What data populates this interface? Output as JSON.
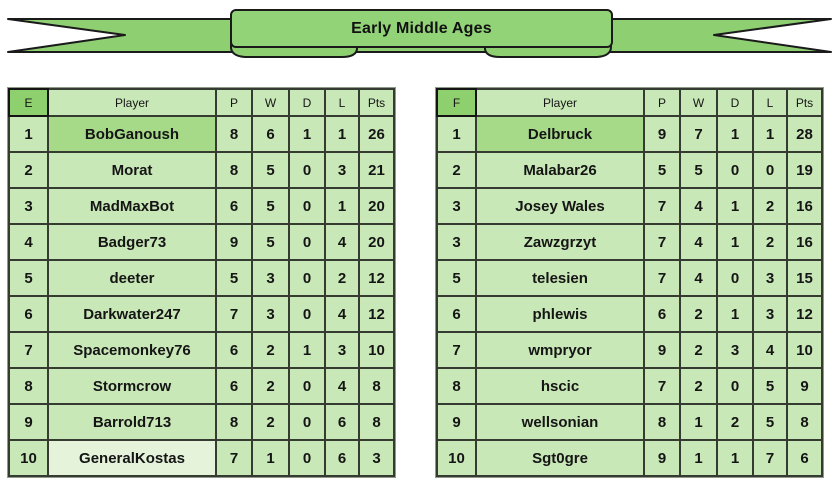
{
  "banner": {
    "title": "Early Middle Ages"
  },
  "colors": {
    "ribbon_green": "#8ecf72",
    "box_green": "#93d377",
    "header_green": "#8ed06e",
    "row_green": "#c9e8b7",
    "highlight_green": "#a6da89",
    "pale_green": "#e5f3da",
    "border_dark": "#353b31"
  },
  "tables": [
    {
      "group": "E",
      "headers": [
        "E",
        "Player",
        "P",
        "W",
        "D",
        "L",
        "Pts"
      ],
      "rows": [
        {
          "rank": "1",
          "player": "BobGanoush",
          "stats": [
            "8",
            "6",
            "1",
            "1",
            "26"
          ],
          "player_cell": "top"
        },
        {
          "rank": "2",
          "player": "Morat",
          "stats": [
            "8",
            "5",
            "0",
            "3",
            "21"
          ],
          "player_cell": "normal"
        },
        {
          "rank": "3",
          "player": "MadMaxBot",
          "stats": [
            "6",
            "5",
            "0",
            "1",
            "20"
          ],
          "player_cell": "normal"
        },
        {
          "rank": "4",
          "player": "Badger73",
          "stats": [
            "9",
            "5",
            "0",
            "4",
            "20"
          ],
          "player_cell": "normal"
        },
        {
          "rank": "5",
          "player": "deeter",
          "stats": [
            "5",
            "3",
            "0",
            "2",
            "12"
          ],
          "player_cell": "normal"
        },
        {
          "rank": "6",
          "player": "Darkwater247",
          "stats": [
            "7",
            "3",
            "0",
            "4",
            "12"
          ],
          "player_cell": "normal"
        },
        {
          "rank": "7",
          "player": "Spacemonkey76",
          "stats": [
            "6",
            "2",
            "1",
            "3",
            "10"
          ],
          "player_cell": "normal"
        },
        {
          "rank": "8",
          "player": "Stormcrow",
          "stats": [
            "6",
            "2",
            "0",
            "4",
            "8"
          ],
          "player_cell": "normal"
        },
        {
          "rank": "9",
          "player": "Barrold713",
          "stats": [
            "8",
            "2",
            "0",
            "6",
            "8"
          ],
          "player_cell": "normal"
        },
        {
          "rank": "10",
          "player": "GeneralKostas",
          "stats": [
            "7",
            "1",
            "0",
            "6",
            "3"
          ],
          "player_cell": "pale"
        }
      ]
    },
    {
      "group": "F",
      "headers": [
        "F",
        "Player",
        "P",
        "W",
        "D",
        "L",
        "Pts"
      ],
      "rows": [
        {
          "rank": "1",
          "player": "Delbruck",
          "stats": [
            "9",
            "7",
            "1",
            "1",
            "28"
          ],
          "player_cell": "top"
        },
        {
          "rank": "2",
          "player": "Malabar26",
          "stats": [
            "5",
            "5",
            "0",
            "0",
            "19"
          ],
          "player_cell": "normal"
        },
        {
          "rank": "3",
          "player": "Josey Wales",
          "stats": [
            "7",
            "4",
            "1",
            "2",
            "16"
          ],
          "player_cell": "normal"
        },
        {
          "rank": "3",
          "player": "Zawzgrzyt",
          "stats": [
            "7",
            "4",
            "1",
            "2",
            "16"
          ],
          "player_cell": "normal"
        },
        {
          "rank": "5",
          "player": "telesien",
          "stats": [
            "7",
            "4",
            "0",
            "3",
            "15"
          ],
          "player_cell": "normal"
        },
        {
          "rank": "6",
          "player": "phlewis",
          "stats": [
            "6",
            "2",
            "1",
            "3",
            "12"
          ],
          "player_cell": "normal"
        },
        {
          "rank": "7",
          "player": "wmpryor",
          "stats": [
            "9",
            "2",
            "3",
            "4",
            "10"
          ],
          "player_cell": "normal"
        },
        {
          "rank": "8",
          "player": "hscic",
          "stats": [
            "7",
            "2",
            "0",
            "5",
            "9"
          ],
          "player_cell": "normal"
        },
        {
          "rank": "9",
          "player": "wellsonian",
          "stats": [
            "8",
            "1",
            "2",
            "5",
            "8"
          ],
          "player_cell": "normal"
        },
        {
          "rank": "10",
          "player": "Sgt0gre",
          "stats": [
            "9",
            "1",
            "1",
            "7",
            "6"
          ],
          "player_cell": "normal"
        }
      ]
    }
  ]
}
